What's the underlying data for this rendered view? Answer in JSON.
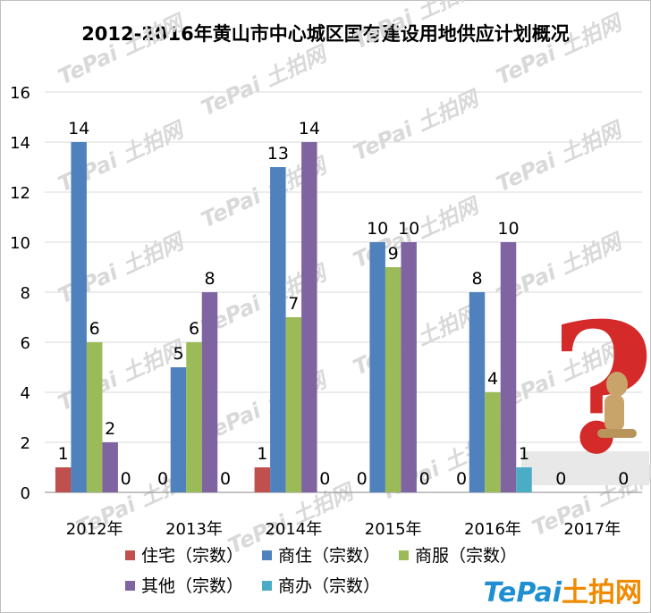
{
  "chart_data": {
    "type": "bar",
    "title": "2012-2016年黄山市中心城区国有建设用地供应计划概况",
    "categories": [
      "2012年",
      "2013年",
      "2014年",
      "2015年",
      "2016年",
      "2017年"
    ],
    "ylim": [
      0,
      16
    ],
    "yticks": [
      "0",
      "2",
      "4",
      "6",
      "8",
      "10",
      "12",
      "14",
      "16"
    ],
    "grid": true,
    "legend_position": "bottom",
    "series": [
      {
        "name": "住宅（宗数）",
        "color": "#c0504d",
        "values": [
          1,
          0,
          1,
          0,
          0,
          0
        ]
      },
      {
        "name": "商住（宗数）",
        "color": "#4f81bd",
        "values": [
          14,
          5,
          13,
          10,
          8,
          null
        ]
      },
      {
        "name": "商服（宗数）",
        "color": "#9bbb59",
        "values": [
          6,
          6,
          7,
          9,
          4,
          null
        ]
      },
      {
        "name": "其他（宗数）",
        "color": "#8064a2",
        "values": [
          2,
          8,
          14,
          10,
          10,
          null
        ]
      },
      {
        "name": "商办（宗数）",
        "color": "#4bacc6",
        "values": [
          0,
          0,
          0,
          0,
          1,
          0
        ]
      }
    ]
  },
  "watermark": {
    "text": "TePai 土拍网",
    "brand_part1": "TePai",
    "brand_part2": "土拍网"
  }
}
